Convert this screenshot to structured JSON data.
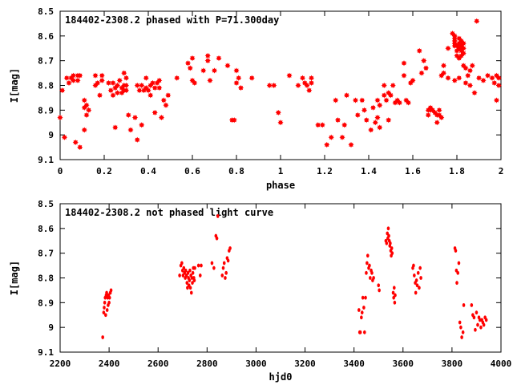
{
  "colors": {
    "marker": "#ff0000",
    "axis": "#000000",
    "background": "#ffffff"
  },
  "chart_data": [
    {
      "type": "scatter",
      "title": "184402-2308.2 phased with P=71.300day",
      "xlabel": "phase",
      "ylabel": "I[mag]",
      "xlim": [
        0,
        2
      ],
      "ylim": [
        8.5,
        9.1
      ],
      "y_inverted": true,
      "grid": false,
      "x_ticks": [
        "0",
        "0.2",
        "0.4",
        "0.6",
        "0.8",
        "1",
        "1.2",
        "1.4",
        "1.6",
        "1.8",
        "2"
      ],
      "y_ticks": [
        "8.5",
        "8.6",
        "8.7",
        "8.8",
        "8.9",
        "9",
        "9.1"
      ],
      "x_tick_values": [
        0,
        0.2,
        0.4,
        0.6,
        0.8,
        1.0,
        1.2,
        1.4,
        1.6,
        1.8,
        2.0
      ],
      "y_tick_values": [
        8.5,
        8.6,
        8.7,
        8.8,
        8.9,
        9.0,
        9.1
      ],
      "marker": "star",
      "points": [
        [
          0.0,
          8.93
        ],
        [
          0.01,
          8.82
        ],
        [
          0.02,
          9.01
        ],
        [
          0.03,
          8.77
        ],
        [
          0.04,
          8.79
        ],
        [
          0.05,
          8.77
        ],
        [
          0.06,
          8.76
        ],
        [
          0.06,
          8.78
        ],
        [
          0.07,
          9.03
        ],
        [
          0.08,
          8.76
        ],
        [
          0.08,
          8.78
        ],
        [
          0.09,
          8.76
        ],
        [
          0.09,
          9.05
        ],
        [
          0.11,
          8.98
        ],
        [
          0.11,
          8.86
        ],
        [
          0.11,
          8.89
        ],
        [
          0.12,
          8.88
        ],
        [
          0.13,
          8.9
        ],
        [
          0.12,
          8.92
        ],
        [
          0.16,
          8.76
        ],
        [
          0.16,
          8.8
        ],
        [
          0.17,
          8.79
        ],
        [
          0.18,
          8.84
        ],
        [
          0.19,
          8.76
        ],
        [
          0.19,
          8.78
        ],
        [
          0.22,
          8.79
        ],
        [
          0.23,
          8.82
        ],
        [
          0.24,
          8.84
        ],
        [
          0.24,
          8.79
        ],
        [
          0.25,
          8.81
        ],
        [
          0.25,
          8.97
        ],
        [
          0.26,
          8.83
        ],
        [
          0.26,
          8.8
        ],
        [
          0.27,
          8.78
        ],
        [
          0.28,
          8.83
        ],
        [
          0.28,
          8.81
        ],
        [
          0.29,
          8.75
        ],
        [
          0.29,
          8.8
        ],
        [
          0.29,
          8.82
        ],
        [
          0.3,
          8.77
        ],
        [
          0.3,
          8.8
        ],
        [
          0.3,
          8.82
        ],
        [
          0.31,
          8.92
        ],
        [
          0.32,
          8.98
        ],
        [
          0.34,
          8.93
        ],
        [
          0.35,
          9.02
        ],
        [
          0.35,
          8.8
        ],
        [
          0.36,
          8.82
        ],
        [
          0.37,
          8.8
        ],
        [
          0.38,
          8.82
        ],
        [
          0.37,
          8.96
        ],
        [
          0.39,
          8.81
        ],
        [
          0.39,
          8.77
        ],
        [
          0.4,
          8.82
        ],
        [
          0.41,
          8.8
        ],
        [
          0.41,
          8.84
        ],
        [
          0.42,
          8.79
        ],
        [
          0.43,
          8.81
        ],
        [
          0.43,
          8.91
        ],
        [
          0.44,
          8.79
        ],
        [
          0.45,
          8.78
        ],
        [
          0.45,
          8.81
        ],
        [
          0.46,
          8.93
        ],
        [
          0.47,
          8.86
        ],
        [
          0.48,
          8.88
        ],
        [
          0.49,
          8.84
        ],
        [
          0.53,
          8.77
        ],
        [
          0.58,
          8.71
        ],
        [
          0.59,
          8.73
        ],
        [
          0.6,
          8.78
        ],
        [
          0.61,
          8.79
        ],
        [
          0.6,
          8.69
        ],
        [
          0.65,
          8.74
        ],
        [
          0.67,
          8.68
        ],
        [
          0.67,
          8.7
        ],
        [
          0.68,
          8.78
        ],
        [
          0.7,
          8.74
        ],
        [
          0.72,
          8.69
        ],
        [
          0.76,
          8.72
        ],
        [
          0.78,
          8.94
        ],
        [
          0.79,
          8.94
        ],
        [
          0.8,
          8.74
        ],
        [
          0.8,
          8.79
        ],
        [
          0.81,
          8.77
        ],
        [
          0.82,
          8.81
        ],
        [
          0.87,
          8.77
        ],
        [
          0.95,
          8.8
        ],
        [
          0.97,
          8.8
        ],
        [
          0.99,
          8.91
        ],
        [
          1.0,
          8.95
        ],
        [
          1.04,
          8.76
        ],
        [
          1.08,
          8.8
        ],
        [
          1.1,
          8.77
        ],
        [
          1.11,
          8.79
        ],
        [
          1.12,
          8.8
        ],
        [
          1.13,
          8.82
        ],
        [
          1.14,
          8.77
        ],
        [
          1.14,
          8.79
        ],
        [
          1.17,
          8.96
        ],
        [
          1.19,
          8.96
        ],
        [
          1.21,
          9.04
        ],
        [
          1.23,
          9.01
        ],
        [
          1.25,
          8.86
        ],
        [
          1.26,
          8.94
        ],
        [
          1.28,
          9.01
        ],
        [
          1.29,
          8.96
        ],
        [
          1.3,
          8.84
        ],
        [
          1.32,
          9.04
        ],
        [
          1.34,
          8.86
        ],
        [
          1.35,
          8.92
        ],
        [
          1.37,
          8.86
        ],
        [
          1.38,
          8.9
        ],
        [
          1.39,
          8.94
        ],
        [
          1.41,
          8.98
        ],
        [
          1.42,
          8.89
        ],
        [
          1.43,
          8.95
        ],
        [
          1.44,
          8.86
        ],
        [
          1.44,
          8.93
        ],
        [
          1.45,
          8.97
        ],
        [
          1.45,
          8.88
        ],
        [
          1.47,
          8.8
        ],
        [
          1.47,
          8.84
        ],
        [
          1.48,
          8.86
        ],
        [
          1.49,
          8.94
        ],
        [
          1.49,
          8.83
        ],
        [
          1.5,
          8.84
        ],
        [
          1.51,
          8.8
        ],
        [
          1.52,
          8.87
        ],
        [
          1.53,
          8.86
        ],
        [
          1.54,
          8.87
        ],
        [
          1.56,
          8.76
        ],
        [
          1.56,
          8.71
        ],
        [
          1.57,
          8.86
        ],
        [
          1.58,
          8.87
        ],
        [
          1.59,
          8.79
        ],
        [
          1.6,
          8.78
        ],
        [
          1.63,
          8.66
        ],
        [
          1.64,
          8.75
        ],
        [
          1.65,
          8.7
        ],
        [
          1.66,
          8.73
        ],
        [
          1.67,
          8.9
        ],
        [
          1.67,
          8.92
        ],
        [
          1.68,
          8.89
        ],
        [
          1.68,
          8.9
        ],
        [
          1.69,
          8.9
        ],
        [
          1.7,
          8.91
        ],
        [
          1.71,
          8.92
        ],
        [
          1.71,
          8.95
        ],
        [
          1.72,
          8.9
        ],
        [
          1.72,
          8.92
        ],
        [
          1.73,
          8.93
        ],
        [
          1.73,
          8.76
        ],
        [
          1.74,
          8.75
        ],
        [
          1.74,
          8.72
        ],
        [
          1.76,
          8.65
        ],
        [
          1.76,
          8.77
        ],
        [
          1.78,
          8.59
        ],
        [
          1.79,
          8.6
        ],
        [
          1.79,
          8.61
        ],
        [
          1.79,
          8.62
        ],
        [
          1.79,
          8.63
        ],
        [
          1.79,
          8.64
        ],
        [
          1.8,
          8.64
        ],
        [
          1.8,
          8.66
        ],
        [
          1.8,
          8.68
        ],
        [
          1.81,
          8.61
        ],
        [
          1.81,
          8.63
        ],
        [
          1.81,
          8.65
        ],
        [
          1.81,
          8.69
        ],
        [
          1.82,
          8.62
        ],
        [
          1.82,
          8.64
        ],
        [
          1.82,
          8.66
        ],
        [
          1.82,
          8.68
        ],
        [
          1.83,
          8.63
        ],
        [
          1.83,
          8.65
        ],
        [
          1.83,
          8.67
        ],
        [
          1.79,
          8.78
        ],
        [
          1.81,
          8.77
        ],
        [
          1.83,
          8.72
        ],
        [
          1.84,
          8.73
        ],
        [
          1.84,
          8.79
        ],
        [
          1.85,
          8.76
        ],
        [
          1.86,
          8.74
        ],
        [
          1.86,
          8.8
        ],
        [
          1.87,
          8.72
        ],
        [
          1.88,
          8.83
        ],
        [
          1.89,
          8.54
        ],
        [
          1.9,
          8.77
        ],
        [
          1.92,
          8.78
        ],
        [
          1.94,
          8.76
        ],
        [
          1.96,
          8.77
        ],
        [
          1.97,
          8.79
        ],
        [
          1.98,
          8.76
        ],
        [
          1.98,
          8.86
        ],
        [
          1.99,
          8.77
        ],
        [
          1.99,
          8.8
        ]
      ]
    },
    {
      "type": "scatter",
      "title": "184402-2308.2 not phased light curve",
      "xlabel": "hjd0",
      "ylabel": "I[mag]",
      "xlim": [
        2200,
        4000
      ],
      "ylim": [
        8.5,
        9.1
      ],
      "y_inverted": true,
      "grid": false,
      "x_ticks": [
        "2200",
        "2400",
        "2600",
        "2800",
        "3000",
        "3200",
        "3400",
        "3600",
        "3800",
        "4000"
      ],
      "y_ticks": [
        "8.5",
        "8.6",
        "8.7",
        "8.8",
        "8.9",
        "9",
        "9.1"
      ],
      "x_tick_values": [
        2200,
        2400,
        2600,
        2800,
        3000,
        3200,
        3400,
        3600,
        3800,
        4000
      ],
      "y_tick_values": [
        8.5,
        8.6,
        8.7,
        8.8,
        8.9,
        9.0,
        9.1
      ],
      "marker": "dot",
      "points": [
        [
          2374,
          9.04
        ],
        [
          2378,
          8.94
        ],
        [
          2380,
          8.92
        ],
        [
          2382,
          8.9
        ],
        [
          2384,
          8.88
        ],
        [
          2386,
          8.95
        ],
        [
          2388,
          8.87
        ],
        [
          2390,
          8.86
        ],
        [
          2392,
          8.93
        ],
        [
          2394,
          8.88
        ],
        [
          2396,
          8.91
        ],
        [
          2398,
          8.87
        ],
        [
          2400,
          8.9
        ],
        [
          2402,
          8.88
        ],
        [
          2405,
          8.86
        ],
        [
          2408,
          8.85
        ],
        [
          2688,
          8.79
        ],
        [
          2693,
          8.75
        ],
        [
          2697,
          8.74
        ],
        [
          2700,
          8.77
        ],
        [
          2702,
          8.79
        ],
        [
          2705,
          8.76
        ],
        [
          2708,
          8.78
        ],
        [
          2711,
          8.8
        ],
        [
          2713,
          8.77
        ],
        [
          2716,
          8.79
        ],
        [
          2718,
          8.82
        ],
        [
          2720,
          8.84
        ],
        [
          2722,
          8.78
        ],
        [
          2724,
          8.8
        ],
        [
          2726,
          8.83
        ],
        [
          2728,
          8.81
        ],
        [
          2730,
          8.77
        ],
        [
          2732,
          8.84
        ],
        [
          2734,
          8.79
        ],
        [
          2736,
          8.86
        ],
        [
          2738,
          8.8
        ],
        [
          2740,
          8.82
        ],
        [
          2742,
          8.78
        ],
        [
          2744,
          8.76
        ],
        [
          2746,
          8.8
        ],
        [
          2748,
          8.81
        ],
        [
          2750,
          8.76
        ],
        [
          2765,
          8.75
        ],
        [
          2772,
          8.79
        ],
        [
          2776,
          8.75
        ],
        [
          2820,
          8.74
        ],
        [
          2828,
          8.76
        ],
        [
          2836,
          8.63
        ],
        [
          2840,
          8.64
        ],
        [
          2844,
          8.55
        ],
        [
          2862,
          8.79
        ],
        [
          2866,
          8.76
        ],
        [
          2870,
          8.74
        ],
        [
          2874,
          8.8
        ],
        [
          2878,
          8.78
        ],
        [
          2882,
          8.72
        ],
        [
          2886,
          8.73
        ],
        [
          2890,
          8.69
        ],
        [
          2894,
          8.68
        ],
        [
          3420,
          8.93
        ],
        [
          3423,
          9.02
        ],
        [
          3426,
          9.02
        ],
        [
          3430,
          8.96
        ],
        [
          3433,
          8.94
        ],
        [
          3436,
          8.88
        ],
        [
          3440,
          8.92
        ],
        [
          3443,
          9.02
        ],
        [
          3447,
          8.88
        ],
        [
          3450,
          8.78
        ],
        [
          3453,
          8.74
        ],
        [
          3456,
          8.71
        ],
        [
          3460,
          8.76
        ],
        [
          3463,
          8.75
        ],
        [
          3466,
          8.8
        ],
        [
          3470,
          8.77
        ],
        [
          3473,
          8.78
        ],
        [
          3476,
          8.81
        ],
        [
          3480,
          8.8
        ],
        [
          3500,
          8.83
        ],
        [
          3503,
          8.85
        ],
        [
          3530,
          8.65
        ],
        [
          3533,
          8.66
        ],
        [
          3536,
          8.62
        ],
        [
          3538,
          8.64
        ],
        [
          3540,
          8.6
        ],
        [
          3542,
          8.63
        ],
        [
          3544,
          8.65
        ],
        [
          3546,
          8.67
        ],
        [
          3548,
          8.66
        ],
        [
          3550,
          8.69
        ],
        [
          3552,
          8.71
        ],
        [
          3554,
          8.68
        ],
        [
          3556,
          8.7
        ],
        [
          3560,
          8.86
        ],
        [
          3562,
          8.88
        ],
        [
          3564,
          8.84
        ],
        [
          3566,
          8.9
        ],
        [
          3568,
          8.87
        ],
        [
          3640,
          8.76
        ],
        [
          3643,
          8.75
        ],
        [
          3646,
          8.79
        ],
        [
          3650,
          8.82
        ],
        [
          3652,
          8.86
        ],
        [
          3655,
          8.81
        ],
        [
          3658,
          8.83
        ],
        [
          3662,
          8.78
        ],
        [
          3666,
          8.84
        ],
        [
          3670,
          8.76
        ],
        [
          3673,
          8.8
        ],
        [
          3812,
          8.68
        ],
        [
          3815,
          8.69
        ],
        [
          3818,
          8.77
        ],
        [
          3820,
          8.82
        ],
        [
          3824,
          8.78
        ],
        [
          3828,
          8.74
        ],
        [
          3832,
          8.98
        ],
        [
          3836,
          9.0
        ],
        [
          3840,
          9.04
        ],
        [
          3845,
          9.02
        ],
        [
          3848,
          8.91
        ],
        [
          3880,
          8.91
        ],
        [
          3885,
          8.95
        ],
        [
          3890,
          8.96
        ],
        [
          3895,
          9.01
        ],
        [
          3900,
          8.94
        ],
        [
          3905,
          8.99
        ],
        [
          3910,
          8.96
        ],
        [
          3914,
          8.97
        ],
        [
          3918,
          9.0
        ],
        [
          3922,
          8.97
        ],
        [
          3926,
          8.98
        ],
        [
          3930,
          8.99
        ],
        [
          3935,
          8.96
        ],
        [
          3940,
          8.97
        ]
      ]
    }
  ]
}
